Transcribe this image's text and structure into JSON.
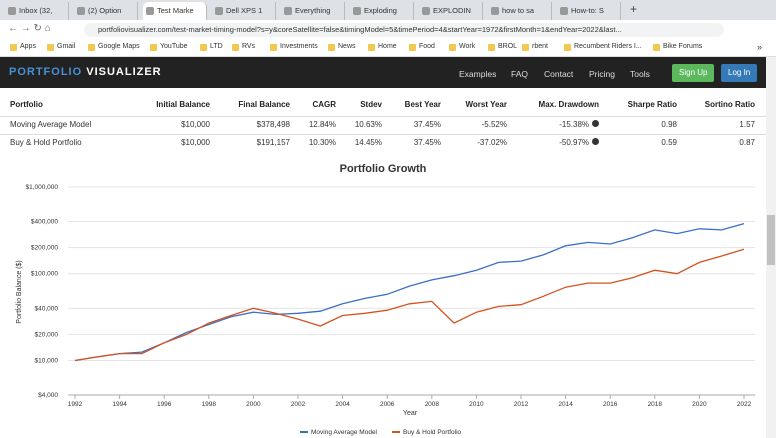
{
  "browser": {
    "tabs": [
      "Inbox (32,",
      "(2) Option",
      "Test Marke",
      "Dell XPS 1",
      "Everything",
      "Exploding",
      "EXPLODIN",
      "how to sa",
      "How-to: S"
    ],
    "url": "portfoliovisualizer.com/test-market-timing-model?s=y&coreSatellite=false&timingModel=5&timePeriod=4&startYear=1972&firstMonth=1&endYear=2022&last...",
    "bookmarks": [
      "Apps",
      "Gmail",
      "Google Maps",
      "YouTube",
      "LTD",
      "RVs",
      "Investments",
      "News",
      "Home",
      "Food",
      "Work",
      "BROL",
      "rbent",
      "Recumbent Riders I...",
      "Bike Forums"
    ],
    "more": "»"
  },
  "site": {
    "logo_a": "PORTFOLIO",
    "logo_b": "VISUALIZER",
    "nav": [
      "Examples",
      "FAQ",
      "Contact",
      "Pricing",
      "Tools"
    ],
    "signup": "Sign Up",
    "login": "Log In"
  },
  "table": {
    "headers": [
      "Portfolio",
      "Initial Balance",
      "Final Balance",
      "CAGR",
      "Stdev",
      "Best Year",
      "Worst Year",
      "Max. Drawdown",
      "Sharpe Ratio",
      "Sortino Ratio"
    ],
    "rows": [
      [
        "Moving Average Model",
        "$10,000",
        "$378,498",
        "12.84%",
        "10.63%",
        "37.45%",
        "-5.52%",
        "-15.38%",
        "0.98",
        "1.57"
      ],
      [
        "Buy & Hold Portfolio",
        "$10,000",
        "$191,157",
        "10.30%",
        "14.45%",
        "37.45%",
        "-37.02%",
        "-50.97%",
        "0.59",
        "0.87"
      ]
    ]
  },
  "chart_data": {
    "type": "line",
    "title": "Portfolio Growth",
    "x_label": "Year",
    "y_label": "Portfolio Balance ($)",
    "log_scale": true,
    "grid": true,
    "xlim": [
      1991.7,
      2022.5
    ],
    "xticks": [
      1992,
      1994,
      1996,
      1998,
      2000,
      2002,
      2004,
      2006,
      2008,
      2010,
      2012,
      2014,
      2016,
      2018,
      2020,
      2022
    ],
    "ylim": [
      4000,
      1000000
    ],
    "yticks": [
      {
        "value": 4000,
        "label": "$4,000"
      },
      {
        "value": 10000,
        "label": "$10,000"
      },
      {
        "value": 20000,
        "label": "$20,000"
      },
      {
        "value": 40000,
        "label": "$40,000"
      },
      {
        "value": 100000,
        "label": "$100,000"
      },
      {
        "value": 200000,
        "label": "$200,000"
      },
      {
        "value": 400000,
        "label": "$400,000"
      },
      {
        "value": 1000000,
        "label": "$1,000,000"
      }
    ],
    "x": [
      1992,
      1993,
      1994,
      1995,
      1996,
      1997,
      1998,
      1999,
      2000,
      2001,
      2002,
      2003,
      2004,
      2005,
      2006,
      2007,
      2008,
      2009,
      2010,
      2011,
      2012,
      2013,
      2014,
      2015,
      2016,
      2017,
      2018,
      2019,
      2020,
      2021,
      2022
    ],
    "series": [
      {
        "name": "Moving Average Model",
        "color": "#3b6fc6",
        "values": [
          10000,
          11000,
          12000,
          12500,
          16000,
          21000,
          26000,
          32000,
          36000,
          34000,
          35000,
          37000,
          45000,
          52000,
          58000,
          72000,
          85000,
          95000,
          110000,
          135000,
          140000,
          165000,
          210000,
          230000,
          220000,
          260000,
          320000,
          290000,
          330000,
          320000,
          378498
        ]
      },
      {
        "name": "Buy & Hold Portfolio",
        "color": "#d4521f",
        "values": [
          10000,
          11000,
          12000,
          12000,
          16000,
          20000,
          27000,
          33000,
          40000,
          35000,
          30000,
          25000,
          33000,
          35000,
          38000,
          45000,
          48000,
          27000,
          36000,
          42000,
          44000,
          55000,
          70000,
          78000,
          78000,
          90000,
          110000,
          100000,
          135000,
          160000,
          191157
        ]
      }
    ]
  }
}
